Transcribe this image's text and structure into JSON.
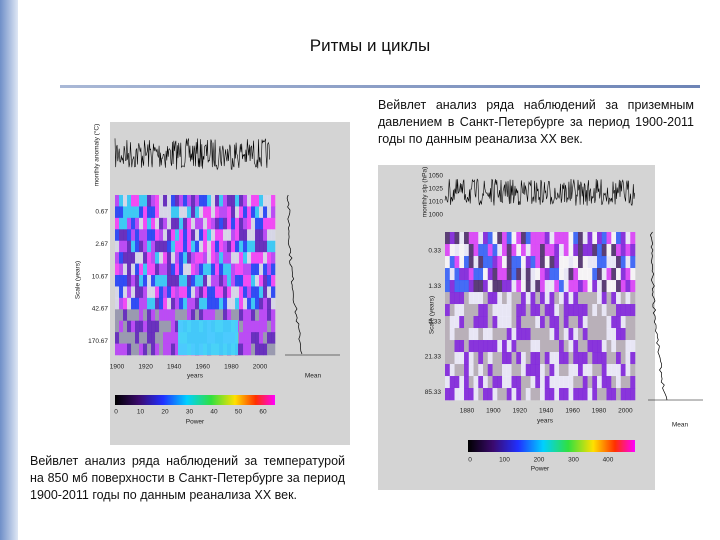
{
  "title": "Ритмы и циклы",
  "right_caption": "Вейвлет анализ ряда наблюдений за приземным давлением в Санкт-Петербурге за период 1900-2011 годы  по данным реанализа XX век.",
  "left_caption": "Вейвлет анализ ряда наблюдений за температурой на 850 мб поверхности в Санкт-Петербурге за период 1900-2011 годы по данным реанализа XX век.",
  "left_figure": {
    "series_label": "monthly anomaly (°C)",
    "scale_label": "Scale (years)",
    "scale_ticks": [
      "0.67",
      "2.67",
      "10.67",
      "42.67",
      "170.67"
    ],
    "year_ticks": [
      "1900",
      "1920",
      "1940",
      "1960",
      "1980",
      "2000"
    ],
    "x_label": "years",
    "mean_label": "Mean",
    "power_ticks": [
      "0",
      "10",
      "20",
      "30",
      "40",
      "50",
      "60"
    ],
    "power_label": "Power"
  },
  "right_figure": {
    "series_label": "monthly slp (hPa)",
    "series_ticks": [
      "1050",
      "1025",
      "1010",
      "1000"
    ],
    "scale_label": "Scale (years)",
    "scale_ticks": [
      "0.33",
      "1.33",
      "5.33",
      "21.33",
      "85.33"
    ],
    "year_ticks": [
      "1880",
      "1900",
      "1920",
      "1940",
      "1960",
      "1980",
      "2000"
    ],
    "x_label": "years",
    "mean_label": "Mean",
    "power_ticks": [
      "0",
      "100",
      "200",
      "300",
      "400"
    ],
    "power_label": "Power"
  }
}
